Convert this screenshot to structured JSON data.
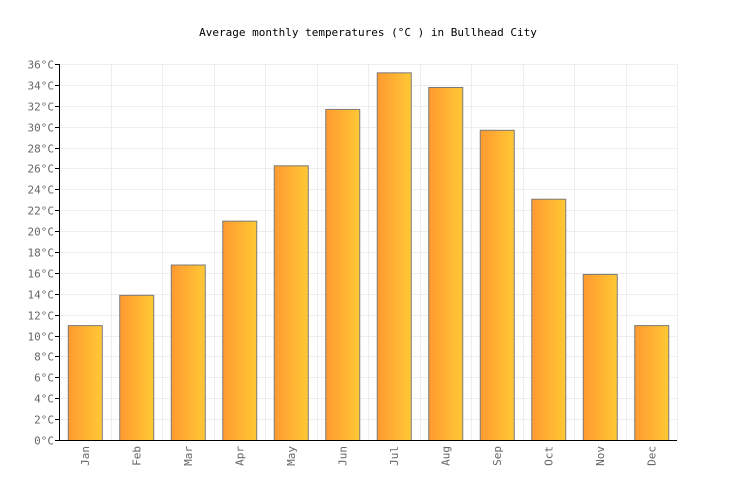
{
  "chart_data": {
    "type": "bar",
    "title": "Average monthly temperatures (°C ) in Bullhead City",
    "categories": [
      "Jan",
      "Feb",
      "Mar",
      "Apr",
      "May",
      "Jun",
      "Jul",
      "Aug",
      "Sep",
      "Oct",
      "Nov",
      "Dec"
    ],
    "values": [
      11.0,
      13.9,
      16.8,
      21.0,
      26.3,
      31.7,
      35.2,
      33.8,
      29.7,
      23.1,
      15.9,
      11.0
    ],
    "unit": "°C",
    "ylim": [
      0,
      36
    ],
    "ytick_step": 2,
    "xlabel": "",
    "ylabel": "",
    "grid": true,
    "colors": {
      "bar_start": "#ff9a30",
      "bar_end": "#ffc835",
      "bar_stroke": "#7a7a7a",
      "grid": "#eeeeee",
      "axis": "#000000",
      "tick_text": "#666666"
    }
  }
}
